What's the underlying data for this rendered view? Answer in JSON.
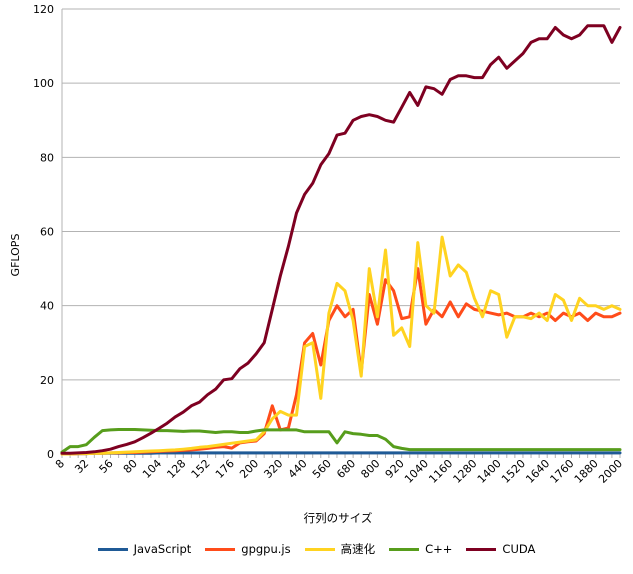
{
  "chart_data": {
    "type": "line",
    "xlabel": "行列のサイズ",
    "ylabel": "GFLOPS",
    "ylim": [
      0,
      120
    ],
    "yticks": [
      0,
      20,
      40,
      60,
      80,
      100,
      120
    ],
    "grid": true,
    "legend_position": "bottom",
    "x": [
      8,
      16,
      24,
      32,
      40,
      48,
      56,
      64,
      72,
      80,
      88,
      96,
      104,
      112,
      120,
      128,
      136,
      144,
      152,
      160,
      168,
      176,
      184,
      192,
      200,
      240,
      280,
      320,
      360,
      400,
      440,
      480,
      520,
      560,
      600,
      640,
      680,
      720,
      760,
      800,
      840,
      880,
      920,
      960,
      1000,
      1040,
      1080,
      1120,
      1160,
      1200,
      1240,
      1280,
      1320,
      1360,
      1400,
      1440,
      1480,
      1520,
      1560,
      1600,
      1640,
      1680,
      1720,
      1760,
      1800,
      1840,
      1880,
      1920,
      1960,
      2000
    ],
    "x_tick_labels": [
      "8",
      "32",
      "56",
      "80",
      "104",
      "128",
      "152",
      "176",
      "200",
      "320",
      "440",
      "560",
      "680",
      "800",
      "920",
      "1040",
      "1160",
      "1280",
      "1400",
      "1520",
      "1640",
      "1760",
      "1880",
      "2000"
    ],
    "series": [
      {
        "name": "JavaScript",
        "color": "#1f5a96",
        "values": [
          0.1,
          0.1,
          0.1,
          0.1,
          0.2,
          0.2,
          0.2,
          0.2,
          0.2,
          0.2,
          0.2,
          0.2,
          0.3,
          0.3,
          0.3,
          0.3,
          0.3,
          0.3,
          0.3,
          0.3,
          0.3,
          0.3,
          0.3,
          0.3,
          0.3,
          0.3,
          0.3,
          0.3,
          0.3,
          0.3,
          0.3,
          0.3,
          0.3,
          0.3,
          0.3,
          0.3,
          0.3,
          0.3,
          0.3,
          0.3,
          0.3,
          0.3,
          0.3,
          0.3,
          0.3,
          0.3,
          0.3,
          0.3,
          0.3,
          0.3,
          0.3,
          0.3,
          0.3,
          0.3,
          0.3,
          0.3,
          0.3,
          0.3,
          0.3,
          0.3,
          0.3,
          0.3,
          0.3,
          0.3,
          0.3,
          0.3,
          0.3,
          0.3,
          0.3,
          0.3
        ]
      },
      {
        "name": "gpgpu.js",
        "color": "#ff4c1a",
        "values": [
          0,
          0,
          0.1,
          0.1,
          0.2,
          0.2,
          0.3,
          0.3,
          0.4,
          0.4,
          0.5,
          0.6,
          0.7,
          0.8,
          0.9,
          1.0,
          1.1,
          1.3,
          1.5,
          1.8,
          2.0,
          1.6,
          3.0,
          3.3,
          3.5,
          5.5,
          13.0,
          6.5,
          7.0,
          16.0,
          30.0,
          32.5,
          24.0,
          36.0,
          40.0,
          37.0,
          39.0,
          22.0,
          43.0,
          35.0,
          47.0,
          44.0,
          36.5,
          37.0,
          50.0,
          35.0,
          39.0,
          37.0,
          41.0,
          37.0,
          40.5,
          39.0,
          38.5,
          38.0,
          37.5,
          38.0,
          37.0,
          37.0,
          38.0,
          37.0,
          38.0,
          36.0,
          38.0,
          37.0,
          38.0,
          36.0,
          38.0,
          37.0,
          37.0,
          38.0
        ]
      },
      {
        "name": "高速化",
        "color": "#ffd320",
        "values": [
          0,
          0,
          0.1,
          0.1,
          0.2,
          0.2,
          0.3,
          0.4,
          0.5,
          0.6,
          0.7,
          0.8,
          0.9,
          1.0,
          1.1,
          1.3,
          1.5,
          1.8,
          2.0,
          2.3,
          2.6,
          2.9,
          3.2,
          3.5,
          3.8,
          6.0,
          9.5,
          11.5,
          10.5,
          10.5,
          29.0,
          30.0,
          15.0,
          38.0,
          46.0,
          44.0,
          36.0,
          21.0,
          50.0,
          37.0,
          55.0,
          32.0,
          34.0,
          29.0,
          57.0,
          40.0,
          38.0,
          58.5,
          48.0,
          51.0,
          49.0,
          42.0,
          37.0,
          44.0,
          43.0,
          31.5,
          37.0,
          37.0,
          36.5,
          38.0,
          36.0,
          43.0,
          41.5,
          36.0,
          42.0,
          40.0,
          40.0,
          39.0,
          40.0,
          39.0
        ]
      },
      {
        "name": "C++",
        "color": "#579d1c",
        "values": [
          0.5,
          2.0,
          2.0,
          2.5,
          4.5,
          6.3,
          6.5,
          6.6,
          6.6,
          6.6,
          6.5,
          6.4,
          6.3,
          6.3,
          6.2,
          6.1,
          6.2,
          6.2,
          6.0,
          5.8,
          6.0,
          6.0,
          5.8,
          5.8,
          6.2,
          6.5,
          6.5,
          6.5,
          6.5,
          6.5,
          6.0,
          6.0,
          6.0,
          6.0,
          3.0,
          6.0,
          5.5,
          5.3,
          5.0,
          5.0,
          4.0,
          2.0,
          1.5,
          1.2,
          1.2,
          1.2,
          1.2,
          1.2,
          1.2,
          1.2,
          1.2,
          1.2,
          1.2,
          1.2,
          1.2,
          1.2,
          1.2,
          1.2,
          1.2,
          1.2,
          1.2,
          1.2,
          1.2,
          1.2,
          1.2,
          1.2,
          1.2,
          1.2,
          1.2,
          1.2
        ]
      },
      {
        "name": "CUDA",
        "color": "#7e0021",
        "values": [
          0.2,
          0.2,
          0.3,
          0.4,
          0.6,
          0.9,
          1.3,
          2.0,
          2.6,
          3.3,
          4.4,
          5.6,
          6.9,
          8.3,
          10.0,
          11.3,
          13.0,
          14.0,
          16.0,
          17.5,
          20.0,
          20.3,
          23.0,
          24.5,
          27.0,
          30.0,
          39.0,
          48.0,
          56.0,
          65.0,
          70.0,
          73.0,
          78.0,
          81.0,
          86.0,
          86.5,
          90.0,
          91.0,
          91.5,
          91.0,
          90.0,
          89.5,
          93.5,
          97.5,
          94.0,
          99.0,
          98.5,
          97.0,
          101.0,
          102.0,
          102.0,
          101.5,
          101.5,
          105.0,
          107.0,
          104.0,
          106.0,
          108.0,
          111.0,
          112.0,
          112.0,
          115.0,
          113.0,
          112.0,
          113.0,
          115.5,
          115.5,
          115.5,
          111.0,
          115.0
        ]
      }
    ]
  }
}
